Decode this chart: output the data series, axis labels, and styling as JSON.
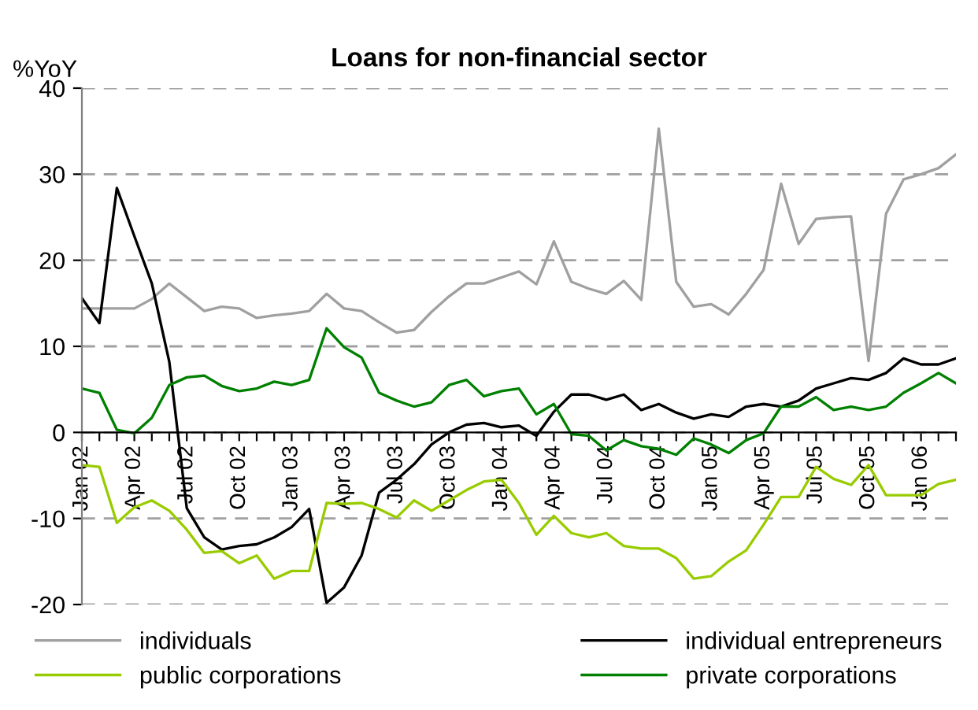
{
  "chart_data": {
    "type": "line",
    "title": "Loans for non-financial sector",
    "ylabel": "%YoY",
    "categories": [
      "Jan 02",
      null,
      null,
      "Apr 02",
      null,
      null,
      "Jul 02",
      null,
      null,
      "Oct 02",
      null,
      null,
      "Jan 03",
      null,
      null,
      "Apr 03",
      null,
      null,
      "Jul 03",
      null,
      null,
      "Oct 03",
      null,
      null,
      "Jan 04",
      null,
      null,
      "Apr 04",
      null,
      null,
      "Jul 04",
      null,
      null,
      "Oct 04",
      null,
      null,
      "Jan 05",
      null,
      null,
      "Apr 05",
      null,
      null,
      "Jul 05",
      null,
      null,
      "Oct 05",
      null,
      null,
      "Jan 06",
      null,
      null
    ],
    "series": [
      {
        "name": "individuals",
        "color": "#a0a0a0",
        "values": [
          14.4,
          14.4,
          14.4,
          14.4,
          15.5,
          17.3,
          15.7,
          14.1,
          14.6,
          14.4,
          13.3,
          13.6,
          13.8,
          14.1,
          16.1,
          14.4,
          14.1,
          12.8,
          11.6,
          11.9,
          14.0,
          15.8,
          17.3,
          17.3,
          18.0,
          18.7,
          17.2,
          22.2,
          17.5,
          16.7,
          16.1,
          17.6,
          15.4,
          35.3,
          17.5,
          14.6,
          14.9,
          13.7,
          16.1,
          18.9,
          28.9,
          21.9,
          24.8,
          25.0,
          25.1,
          8.3,
          25.4,
          29.4,
          30.0,
          30.7,
          32.3
        ]
      },
      {
        "name": "individual entrepreneurs",
        "color": "#000000",
        "values": [
          15.6,
          12.7,
          28.4,
          22.8,
          17.3,
          8.2,
          -8.8,
          -12.2,
          -13.6,
          -13.2,
          -13.0,
          -12.2,
          -11.0,
          -8.9,
          -19.8,
          -18.0,
          -14.3,
          -7.0,
          -5.5,
          -3.7,
          -1.4,
          0.0,
          0.9,
          1.1,
          0.6,
          0.8,
          -0.4,
          2.4,
          4.4,
          4.4,
          3.8,
          4.4,
          2.6,
          3.3,
          2.3,
          1.6,
          2.1,
          1.8,
          3.0,
          3.3,
          3.0,
          3.7,
          5.1,
          5.7,
          6.3,
          6.1,
          6.9,
          8.6,
          7.9,
          7.9,
          8.6
        ]
      },
      {
        "name": "public corporations",
        "color": "#99cc00",
        "values": [
          -3.8,
          -4.0,
          -10.5,
          -8.7,
          -7.9,
          -9.1,
          -11.3,
          -14.0,
          -13.8,
          -15.2,
          -14.3,
          -17.0,
          -16.1,
          -16.1,
          -8.2,
          -8.3,
          -8.2,
          -8.9,
          -9.9,
          -7.9,
          -9.1,
          -7.9,
          -6.7,
          -5.7,
          -5.5,
          -8.2,
          -11.9,
          -9.7,
          -11.7,
          -12.2,
          -11.7,
          -13.2,
          -13.5,
          -13.5,
          -14.6,
          -17.0,
          -16.7,
          -15.0,
          -13.7,
          -10.7,
          -7.5,
          -7.5,
          -4.0,
          -5.4,
          -6.1,
          -3.8,
          -7.3,
          -7.3,
          -7.3,
          -6.0,
          -5.5
        ]
      },
      {
        "name": "private corporations",
        "color": "#008000",
        "values": [
          5.1,
          4.6,
          0.3,
          -0.1,
          1.7,
          5.5,
          6.4,
          6.6,
          5.4,
          4.8,
          5.1,
          5.9,
          5.5,
          6.1,
          12.1,
          9.9,
          8.7,
          4.6,
          3.7,
          3.0,
          3.5,
          5.5,
          6.1,
          4.2,
          4.8,
          5.1,
          2.1,
          3.3,
          -0.2,
          -0.4,
          -2.1,
          -0.9,
          -1.6,
          -1.9,
          -2.6,
          -0.7,
          -1.4,
          -2.4,
          -0.9,
          -0.1,
          3.0,
          3.0,
          4.1,
          2.6,
          3.0,
          2.6,
          3.0,
          4.6,
          5.7,
          6.9,
          5.7
        ]
      }
    ],
    "ylim": [
      -20,
      40
    ],
    "yticks": [
      -20,
      -10,
      0,
      10,
      20,
      30,
      40
    ],
    "grid": "y",
    "legend": "bottom",
    "marker": "none",
    "line_style": "solid"
  }
}
